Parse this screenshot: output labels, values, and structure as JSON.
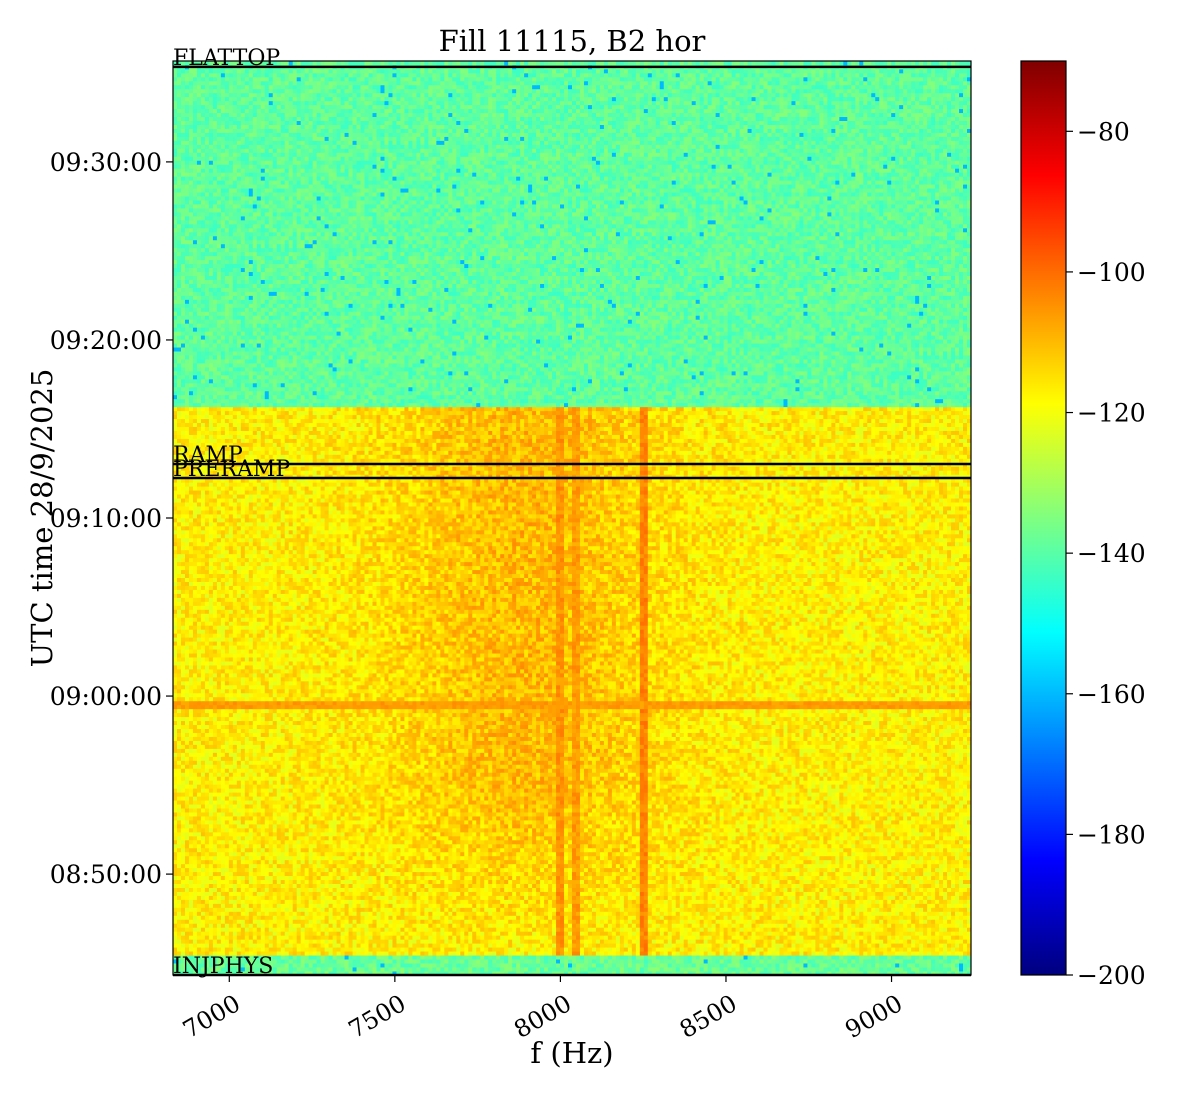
{
  "chart_data": {
    "type": "heatmap",
    "title": "Fill 11115, B2 hor",
    "xlabel": "f (Hz)",
    "ylabel": "UTC time 28/9/2025",
    "xlim": [
      6830,
      9240
    ],
    "ylim_seconds_after_0840": [
      260,
      3340
    ],
    "xticks": [
      7000,
      7500,
      8000,
      8500,
      9000
    ],
    "xtick_labels": [
      "7000",
      "7500",
      "8000",
      "8500",
      "9000"
    ],
    "yticks": [
      {
        "label": "08:50:00",
        "t": 600
      },
      {
        "label": "09:00:00",
        "t": 1200
      },
      {
        "label": "09:10:00",
        "t": 1800
      },
      {
        "label": "09:20:00",
        "t": 2400
      },
      {
        "label": "09:30:00",
        "t": 3000
      }
    ],
    "colorbar": {
      "range": [
        -200,
        -70
      ],
      "ticks": [
        -80,
        -100,
        -120,
        -140,
        -160,
        -180,
        -200
      ],
      "tick_labels": [
        "−80",
        "−100",
        "−120",
        "−140",
        "−160",
        "−180",
        "−200"
      ],
      "colormap": "jet"
    },
    "regions": [
      {
        "t_start": 260,
        "t_end": 330,
        "level": -138
      },
      {
        "t_start": 330,
        "t_end": 2180,
        "level": -117
      },
      {
        "t_start": 2180,
        "t_end": 3340,
        "level": -139
      }
    ],
    "vertical_lines": [
      {
        "f": 8000,
        "level": -105
      },
      {
        "f": 8050,
        "level": -106
      },
      {
        "f": 8250,
        "level": -103
      }
    ],
    "horizontal_lines": [
      {
        "t": 1170,
        "level": -106
      }
    ],
    "phase_markers": [
      {
        "label": "INJPHYS",
        "t": 260
      },
      {
        "label": "PRERAMP",
        "t": 1935
      },
      {
        "label": "RAMP",
        "t": 1982
      },
      {
        "label": "FLATTOP",
        "t": 3320
      }
    ]
  }
}
